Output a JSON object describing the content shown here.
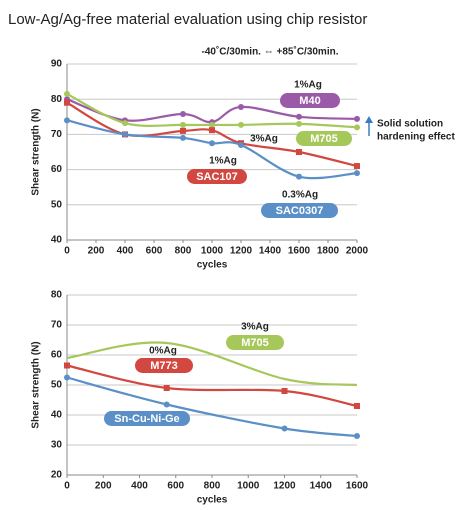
{
  "title": "Low-Ag/Ag-free material evaluation using chip resistor",
  "chart_data": [
    {
      "type": "line",
      "x_label": "cycles",
      "y_label": "Shear strength (N)",
      "x": [
        0,
        400,
        800,
        1000,
        1200,
        1600,
        2000
      ],
      "xlim": [
        0,
        2000
      ],
      "xticks": [
        0,
        200,
        400,
        600,
        800,
        1000,
        1200,
        1400,
        1600,
        1800,
        2000
      ],
      "ylim": [
        40,
        90
      ],
      "yticks": [
        40,
        50,
        60,
        70,
        80,
        90
      ],
      "grid": true,
      "annotations": [
        "-40˚C/30min. ⇔ +85˚C/30min.",
        "Solid solution",
        "hardening effect"
      ],
      "series": [
        {
          "name": "M40",
          "ag": "1%Ag",
          "color": "#9b5aa8",
          "marker": "circle",
          "values": [
            80,
            74,
            75.8,
            73.5,
            77.8,
            75,
            74.4
          ]
        },
        {
          "name": "M705",
          "ag": "3%Ag",
          "color": "#a6c85a",
          "marker": "circle",
          "values": [
            81.5,
            73.2,
            72.7,
            72.7,
            72.7,
            73,
            72
          ]
        },
        {
          "name": "SAC107",
          "ag": "1%Ag",
          "color": "#d2473f",
          "marker": "square",
          "values": [
            79,
            70,
            71,
            71.2,
            67.5,
            65,
            61
          ]
        },
        {
          "name": "SAC0307",
          "ag": "0.3%Ag",
          "color": "#5b8fc7",
          "marker": "circle",
          "values": [
            74,
            70,
            69,
            67.5,
            67,
            58,
            59
          ]
        }
      ]
    },
    {
      "type": "line",
      "x_label": "cycles",
      "y_label": "Shear strength (N)",
      "x": [
        0,
        550,
        1200,
        1600
      ],
      "xlim": [
        0,
        1600
      ],
      "xticks": [
        0,
        200,
        400,
        600,
        800,
        1000,
        1200,
        1400,
        1600
      ],
      "ylim": [
        20,
        80
      ],
      "yticks": [
        20,
        30,
        40,
        50,
        60,
        70,
        80
      ],
      "grid": true,
      "series": [
        {
          "name": "M705",
          "ag": "3%Ag",
          "color": "#a6c85a",
          "marker": "none",
          "values": [
            59,
            64,
            52,
            50
          ]
        },
        {
          "name": "M773",
          "ag": "0%Ag",
          "color": "#d2473f",
          "marker": "square",
          "values": [
            56.5,
            49,
            48,
            43
          ]
        },
        {
          "name": "Sn-Cu-Ni-Ge",
          "color": "#5b8fc7",
          "marker": "circle",
          "values": [
            52.5,
            43.5,
            35.5,
            33
          ]
        }
      ]
    }
  ]
}
